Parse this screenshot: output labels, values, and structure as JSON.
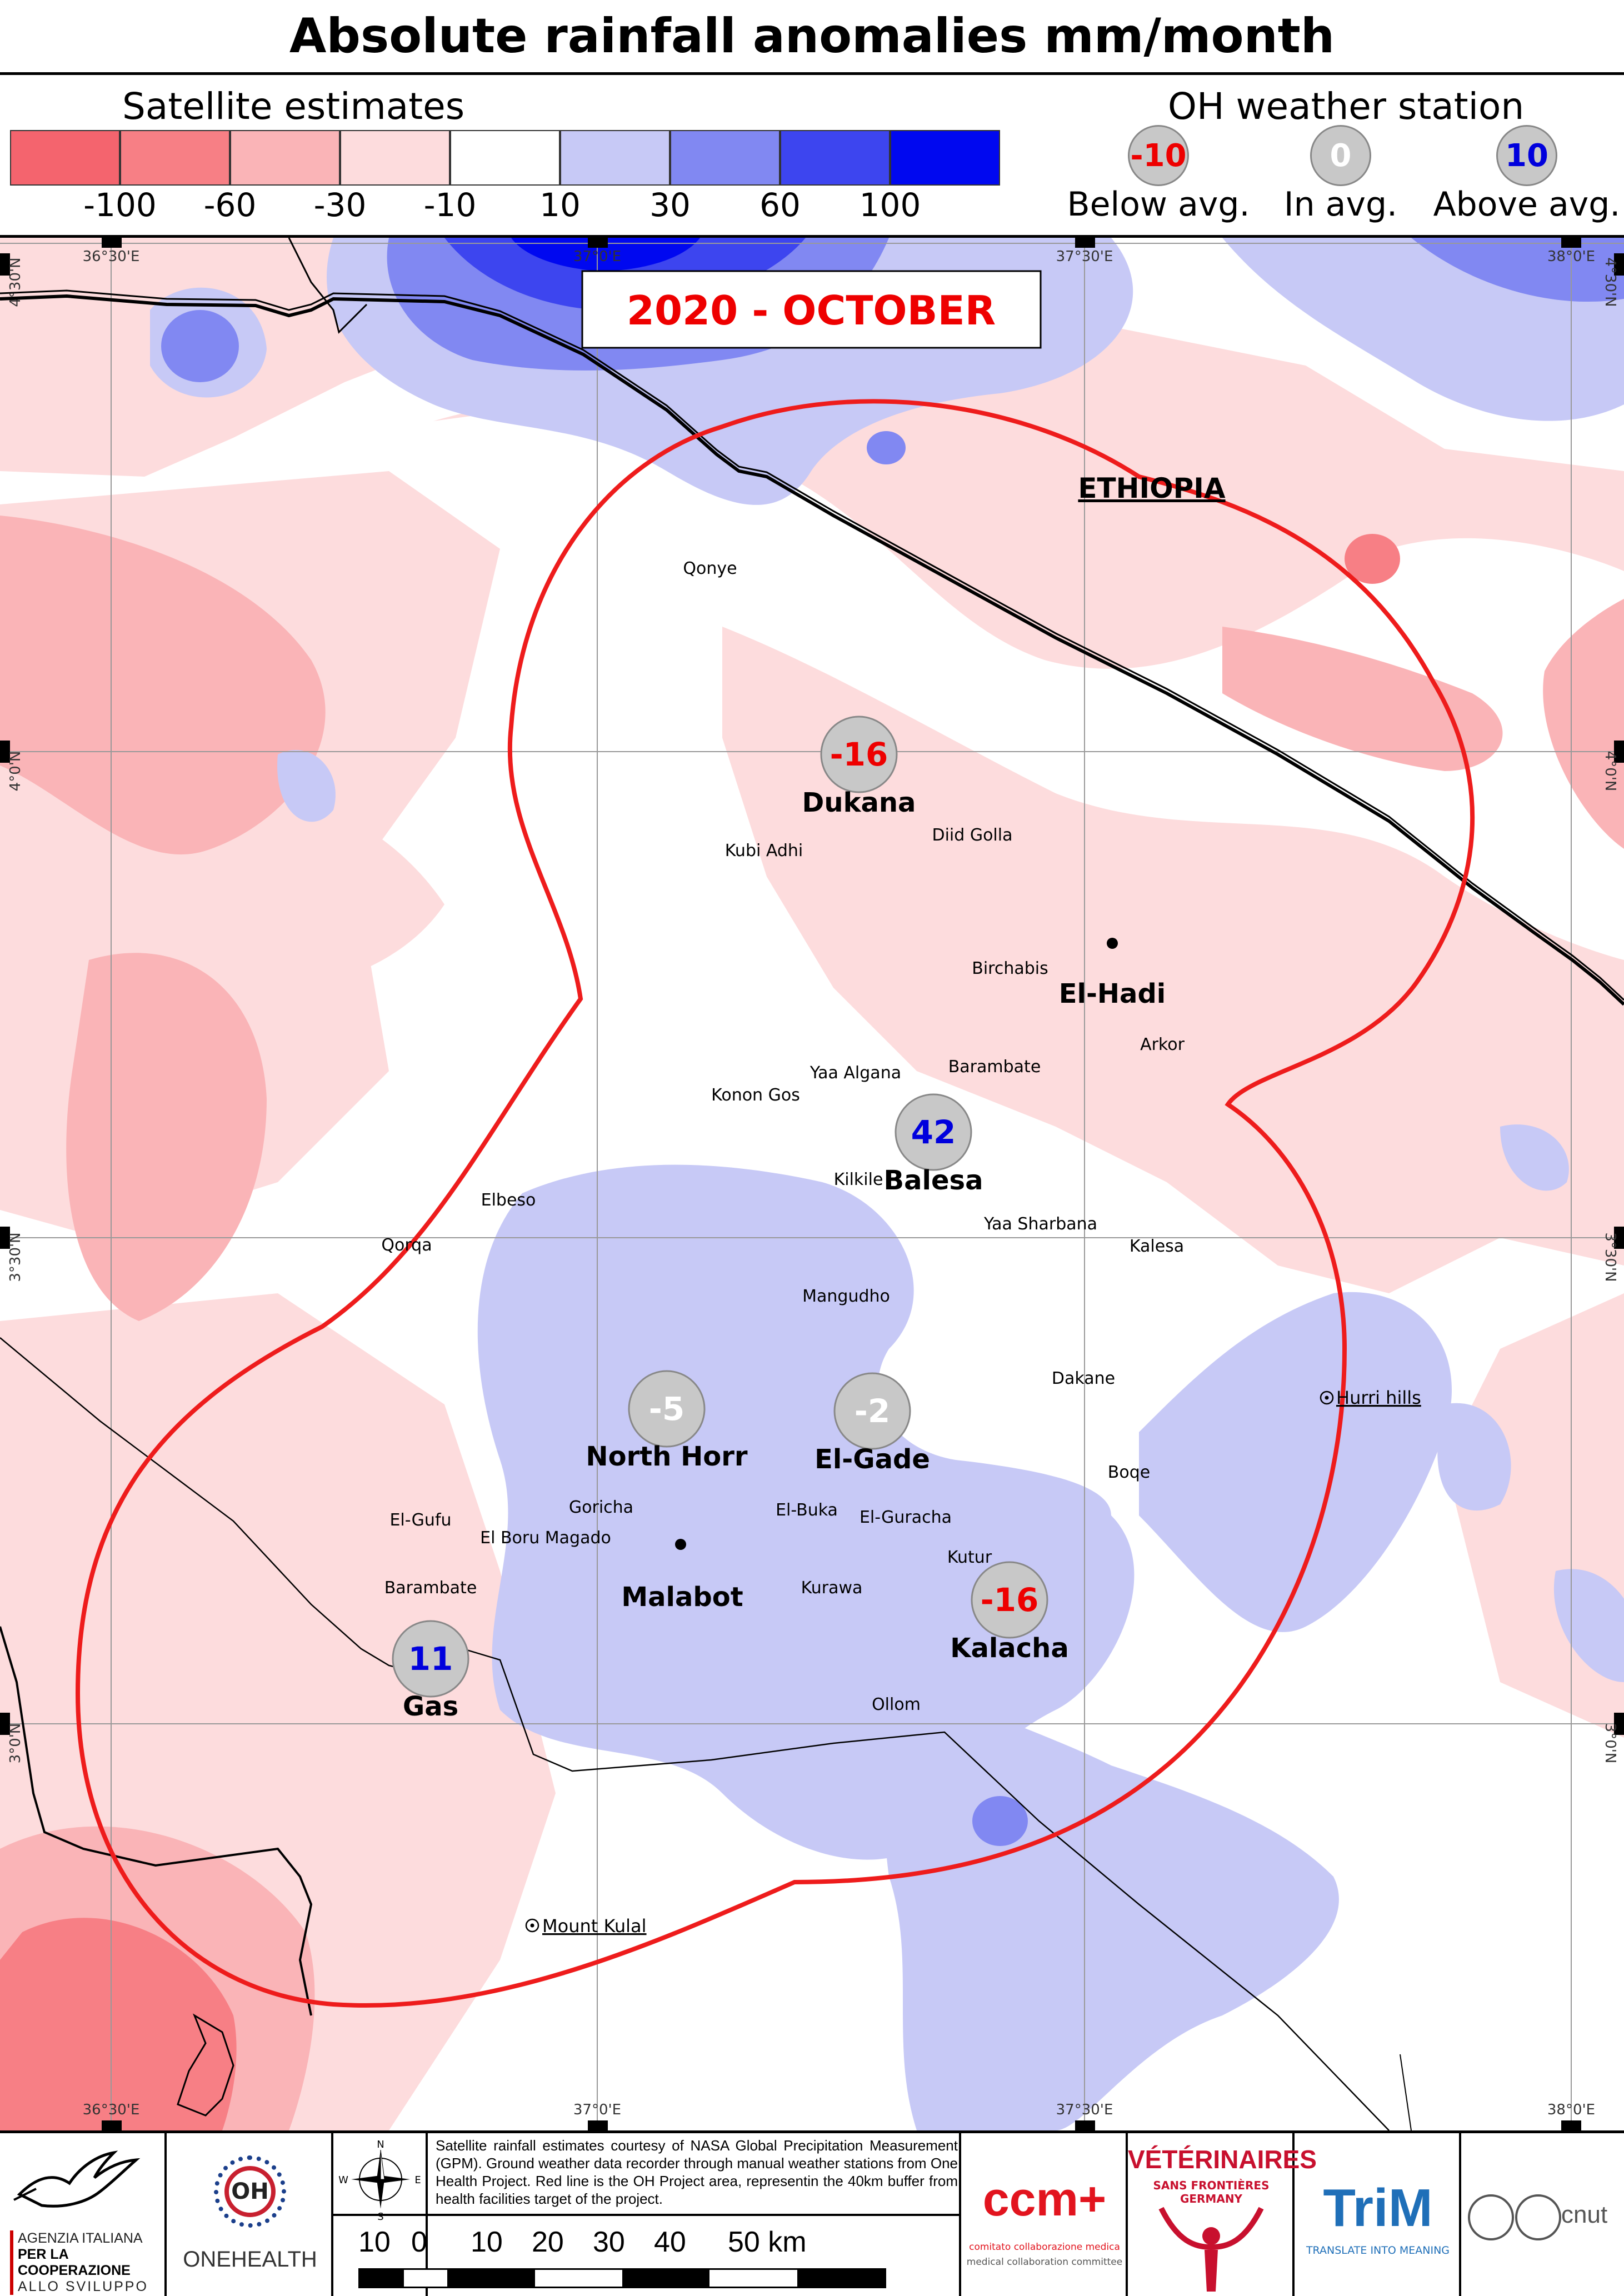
{
  "title": "Absolute rainfall anomalies mm/month",
  "legend": {
    "satellite_heading": "Satellite estimates",
    "station_heading": "OH weather station",
    "scale_colors": [
      "#f4646e",
      "#f77f85",
      "#fab4b7",
      "#fddcdd",
      "#ffffff",
      "#c7c9f6",
      "#8188f2",
      "#3d45ef",
      "#0008f0"
    ],
    "scale_ticks": [
      "-100",
      "-60",
      "-30",
      "-10",
      "10",
      "30",
      "60",
      "100"
    ],
    "station_examples": [
      {
        "value": "-10",
        "color": "#ee0000",
        "label": "Below avg."
      },
      {
        "value": "0",
        "color": "#ffffff",
        "label": "In avg."
      },
      {
        "value": "10",
        "color": "#0000dd",
        "label": "Above avg."
      }
    ]
  },
  "map": {
    "period": "2020 - OCTOBER",
    "country_label": "ETHIOPIA",
    "graticule": {
      "lon_labels": [
        "36°30'E",
        "37°0'E",
        "37°30'E",
        "38°0'E"
      ],
      "lat_labels": [
        "4°30'N",
        "4°0'N",
        "3°30'N",
        "3°0'N"
      ]
    },
    "stations": [
      {
        "name": "Dukana",
        "value": "-16",
        "color": "#ee0000"
      },
      {
        "name": "Balesa",
        "value": "42",
        "color": "#0000dd"
      },
      {
        "name": "North Horr",
        "value": "-5",
        "color": "#ffffff"
      },
      {
        "name": "El-Gade",
        "value": "-2",
        "color": "#ffffff"
      },
      {
        "name": "Kalacha",
        "value": "-16",
        "color": "#ee0000"
      },
      {
        "name": "Gas",
        "value": "11",
        "color": "#0000dd"
      }
    ],
    "bold_places": [
      "El-Hadi",
      "Malabot"
    ],
    "villages": [
      "Qonye",
      "Kubi Adhi",
      "Diid Golla",
      "Birchabis",
      "Arkor",
      "Barambate",
      "Yaa Algana",
      "Konon Gos",
      "Kilkile",
      "Elbeso",
      "Qorqa",
      "Yaa  Sharbana",
      "Kalesa",
      "Mangudho",
      "Dakane",
      "Boqe",
      "El-Gufu",
      "Goricha",
      "El Boru Magado",
      "El-Buka",
      "El-Guracha",
      "Kutur",
      "Barambate",
      "Kurawa",
      "Ollom"
    ],
    "hills": [
      "Hurri hills",
      "Mount Kulal"
    ]
  },
  "footer": {
    "agency_text": [
      "AGENZIA ITALIANA",
      "PER LA COOPERAZIONE",
      "ALLO SVILUPPO"
    ],
    "onehealth_label": "ONEHEALTH",
    "oh_badge": "OH",
    "compass": [
      "N",
      "S",
      "W",
      "E"
    ],
    "credits": "Satellite rainfall estimates courtesy of NASA Global Precipitation Measurement (GPM). Ground weather data recorder through manual weather stations from One Health Project. Red line is the OH Project area, representin the 40km buffer from health facilities target of the project.",
    "scale_labels": [
      "10",
      "0",
      "10",
      "20",
      "30",
      "40",
      "50 km"
    ],
    "ccm_logo": "ccm+",
    "ccm_line1": "comitato collaborazione medica",
    "ccm_line2": "medical collaboration committee",
    "vsf_title": "VÉTÉRINAIRES",
    "vsf_sub": "SANS FRONTIÈRES GERMANY",
    "trim_logo": "TriM",
    "trim_sub": "TRANSLATE INTO MEANING",
    "unit_logo": "cnut"
  }
}
